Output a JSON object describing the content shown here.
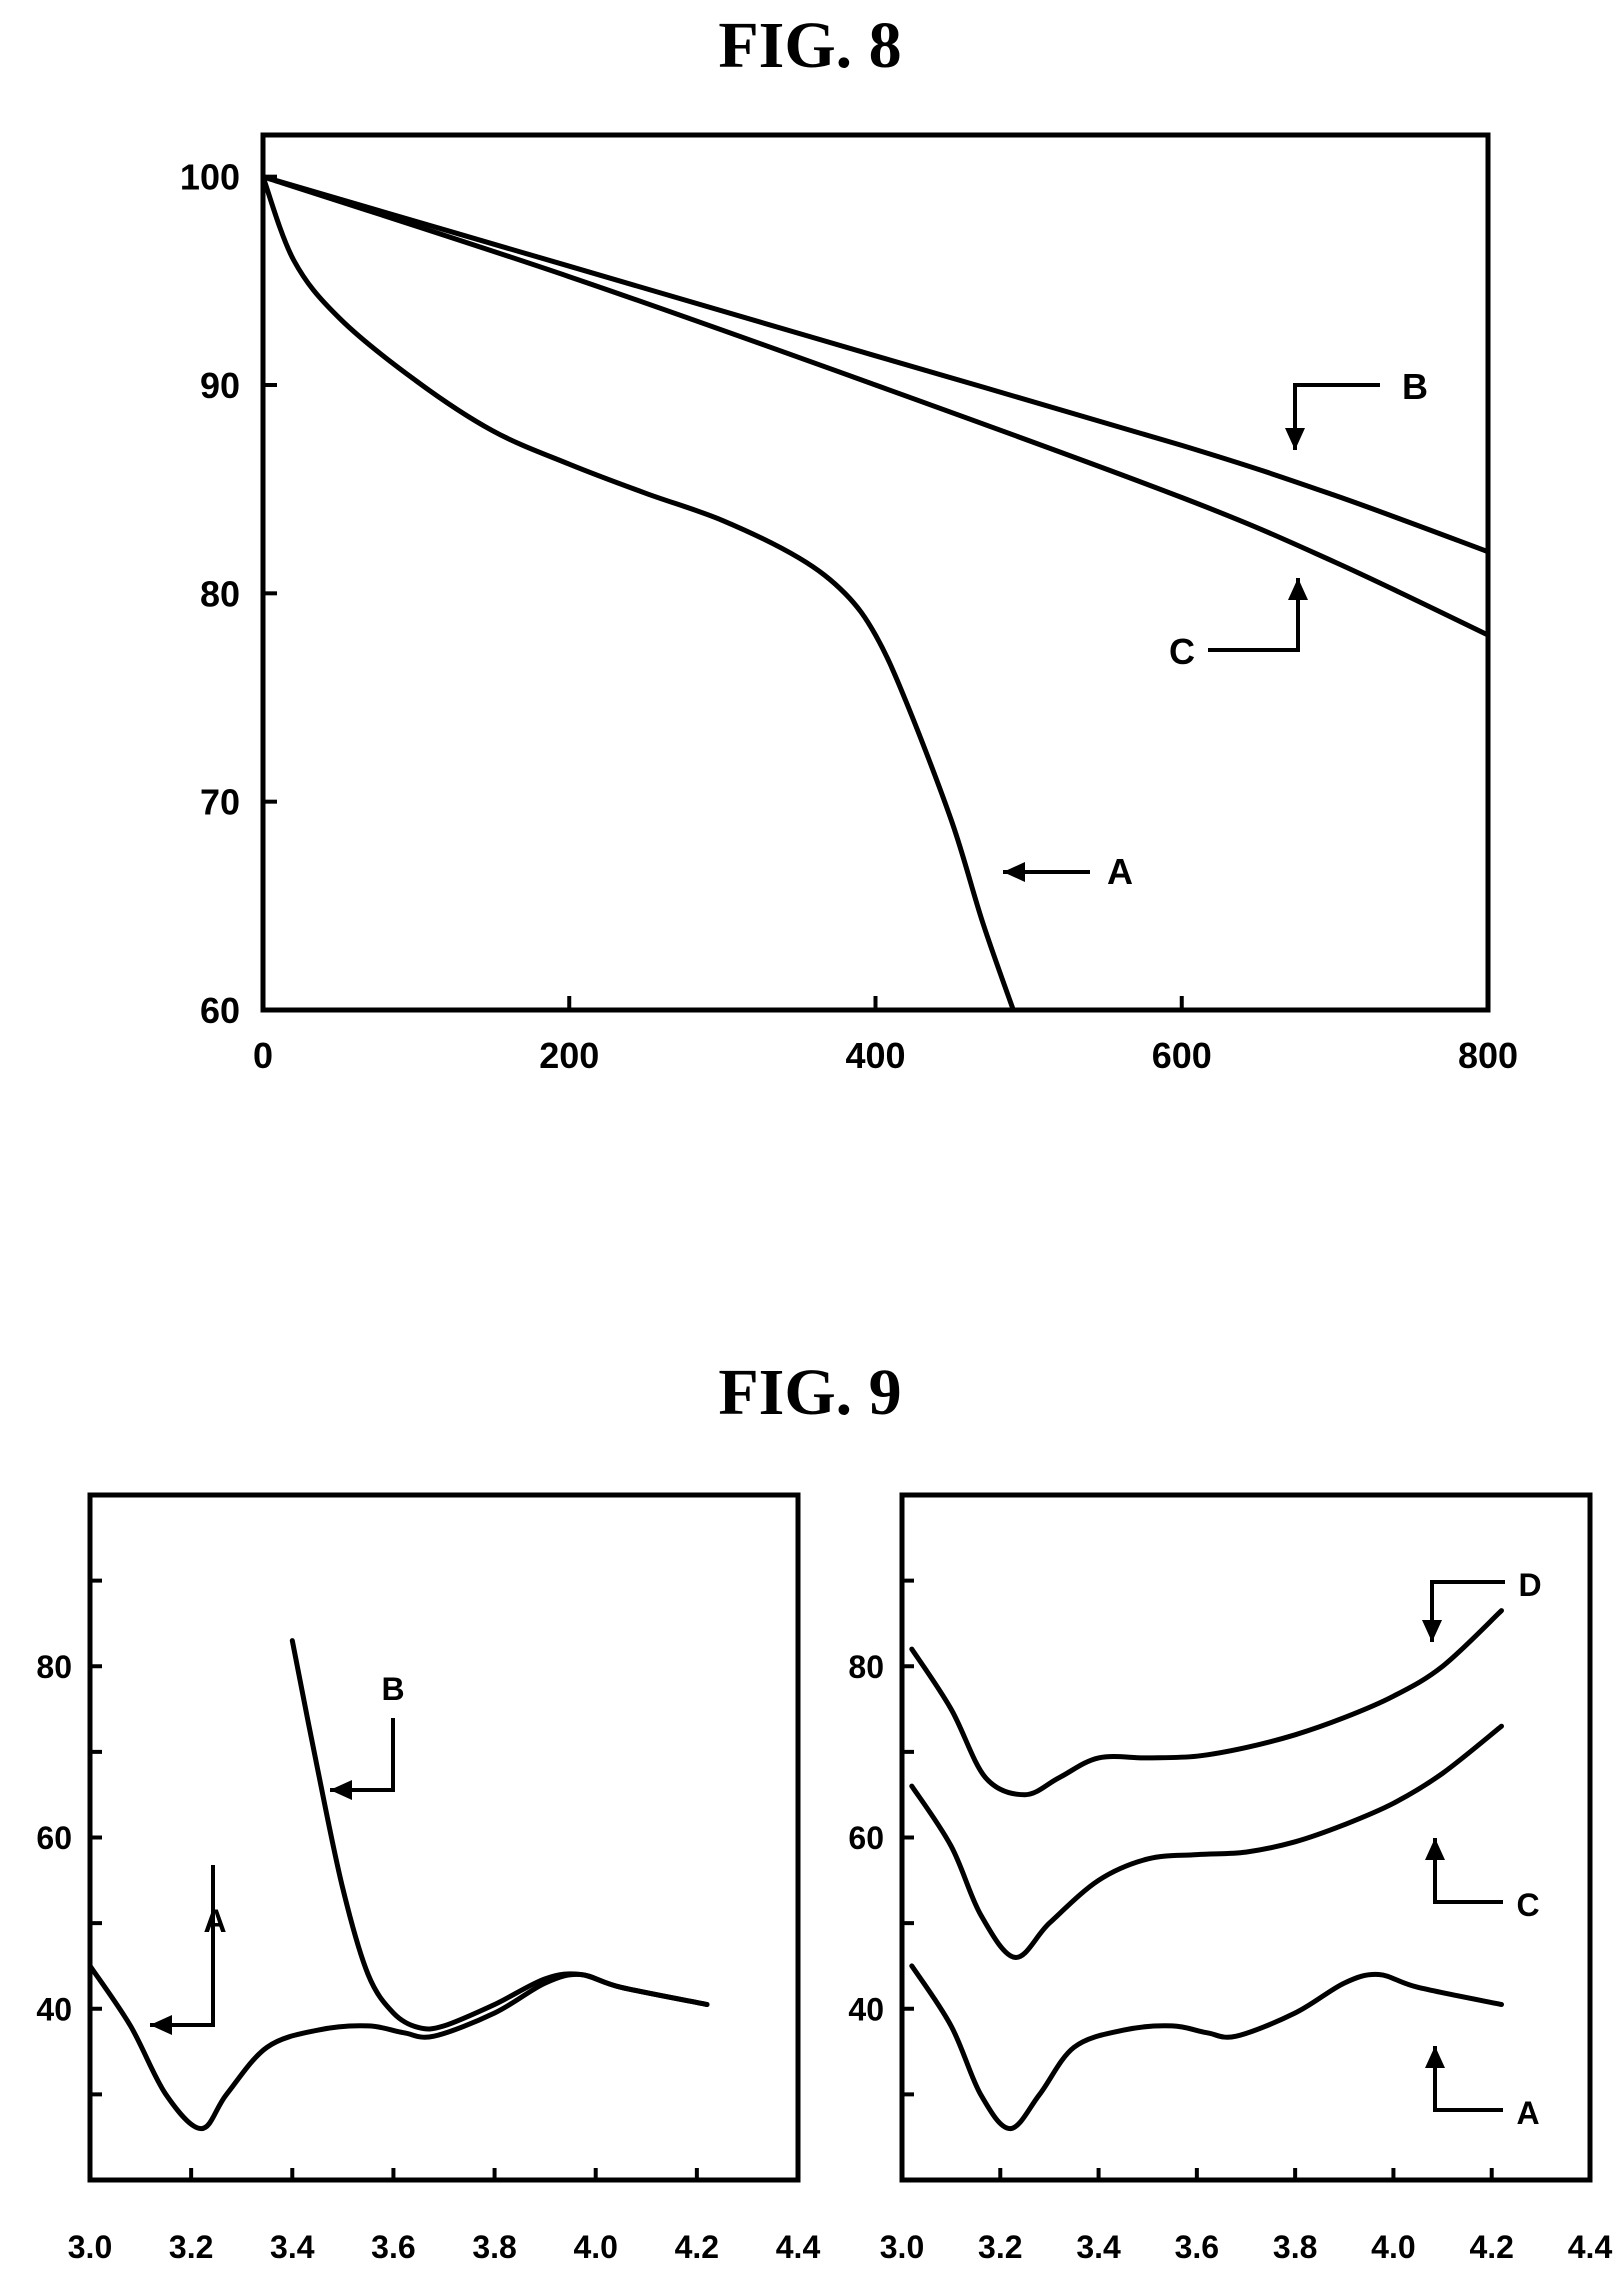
{
  "figures": {
    "fig8_title": "FIG. 8",
    "fig9_title": "FIG. 9"
  },
  "chart_data": [
    {
      "id": "fig8",
      "type": "line",
      "title": "FIG. 8",
      "xlabel": "",
      "ylabel": "",
      "xlim": [
        0,
        800
      ],
      "ylim": [
        60,
        102
      ],
      "xticks": [
        0,
        200,
        400,
        600,
        800
      ],
      "yticks": [
        60,
        70,
        80,
        90,
        100
      ],
      "grid": false,
      "series": [
        {
          "name": "A",
          "x": [
            0,
            20,
            50,
            100,
            150,
            200,
            250,
            300,
            350,
            380,
            400,
            420,
            450,
            470,
            490
          ],
          "y": [
            100,
            96,
            93.2,
            90.2,
            87.8,
            86.2,
            84.8,
            83.5,
            81.7,
            80,
            78,
            74.8,
            69,
            64.2,
            60
          ]
        },
        {
          "name": "B",
          "x": [
            0,
            200,
            400,
            600,
            700,
            800
          ],
          "y": [
            100,
            95.7,
            91.4,
            87.1,
            84.7,
            82
          ]
        },
        {
          "name": "C",
          "x": [
            0,
            200,
            400,
            600,
            700,
            800
          ],
          "y": [
            100,
            95.2,
            90,
            84.6,
            81.5,
            78
          ]
        }
      ],
      "annotations": [
        {
          "label": "A",
          "series": "A"
        },
        {
          "label": "B",
          "series": "B"
        },
        {
          "label": "C",
          "series": "C"
        }
      ]
    },
    {
      "id": "fig9-left",
      "type": "line",
      "title": "FIG. 9",
      "xlabel": "",
      "ylabel": "",
      "xlim": [
        3.0,
        4.4
      ],
      "ylim": [
        20,
        100
      ],
      "xticks": [
        "3.0",
        "3.2",
        "3.4",
        "3.6",
        "3.8",
        "4.0",
        "4.2",
        "4.4"
      ],
      "yticks": [
        40,
        60,
        80
      ],
      "grid": false,
      "series": [
        {
          "name": "A",
          "x": [
            3.0,
            3.08,
            3.15,
            3.22,
            3.27,
            3.35,
            3.45,
            3.55,
            3.62,
            3.68,
            3.8,
            3.9,
            3.97,
            4.05,
            4.22
          ],
          "y": [
            45,
            38,
            30,
            26,
            30,
            35.5,
            37.5,
            38,
            37.2,
            36.8,
            39.5,
            43,
            44,
            42.5,
            40.5
          ]
        },
        {
          "name": "B",
          "x": [
            3.4,
            3.45,
            3.5,
            3.55,
            3.6,
            3.65,
            3.7,
            3.8,
            3.9,
            3.97,
            4.05,
            4.22
          ],
          "y": [
            83,
            68,
            54,
            44,
            39.5,
            37.8,
            38,
            40.5,
            43.5,
            44,
            42.5,
            40.5
          ]
        }
      ],
      "annotations": [
        {
          "label": "A",
          "series": "A"
        },
        {
          "label": "B",
          "series": "B"
        }
      ]
    },
    {
      "id": "fig9-right",
      "type": "line",
      "title": "FIG. 9",
      "xlabel": "",
      "ylabel": "",
      "xlim": [
        3.0,
        4.4
      ],
      "ylim": [
        20,
        100
      ],
      "xticks": [
        "3.0",
        "3.2",
        "3.4",
        "3.6",
        "3.8",
        "4.0",
        "4.2",
        "4.4"
      ],
      "yticks": [
        40,
        60,
        80
      ],
      "grid": false,
      "series": [
        {
          "name": "A",
          "x": [
            3.02,
            3.1,
            3.16,
            3.22,
            3.28,
            3.35,
            3.45,
            3.55,
            3.62,
            3.68,
            3.8,
            3.9,
            3.97,
            4.05,
            4.22
          ],
          "y": [
            45,
            38,
            30,
            26,
            30,
            35.5,
            37.5,
            38,
            37.2,
            36.8,
            39.5,
            43,
            44,
            42.5,
            40.5
          ]
        },
        {
          "name": "C",
          "x": [
            3.02,
            3.1,
            3.16,
            3.23,
            3.3,
            3.4,
            3.5,
            3.6,
            3.7,
            3.8,
            3.9,
            4.0,
            4.1,
            4.22
          ],
          "y": [
            66,
            59,
            51,
            46,
            50,
            55,
            57.5,
            58,
            58.3,
            59.5,
            61.5,
            64,
            67.5,
            73
          ]
        },
        {
          "name": "D",
          "x": [
            3.02,
            3.1,
            3.17,
            3.25,
            3.32,
            3.4,
            3.5,
            3.6,
            3.7,
            3.8,
            3.9,
            4.0,
            4.1,
            4.22
          ],
          "y": [
            82,
            75,
            67,
            65,
            67,
            69.3,
            69.3,
            69.5,
            70.5,
            72,
            74,
            76.5,
            80,
            86.5
          ]
        }
      ],
      "annotations": [
        {
          "label": "A",
          "series": "A"
        },
        {
          "label": "C",
          "series": "C"
        },
        {
          "label": "D",
          "series": "D"
        }
      ]
    }
  ]
}
